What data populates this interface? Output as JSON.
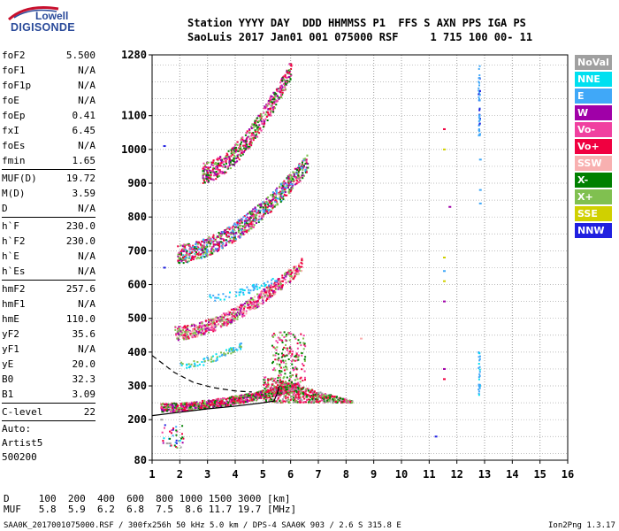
{
  "logo": {
    "line1": "Lowell",
    "line2": "DIGISONDE"
  },
  "header": {
    "line1": "Station YYYY DAY  DDD HHMMSS P1  FFS S AXN PPS IGA PS",
    "line2": "SaoLuis 2017 Jan01 001 075000 RSF     1 715 100 00- 11"
  },
  "params": [
    {
      "label": "foF2",
      "value": "5.500"
    },
    {
      "label": "foF1",
      "value": "N/A"
    },
    {
      "label": "foF1p",
      "value": "N/A"
    },
    {
      "label": "foE",
      "value": "N/A"
    },
    {
      "label": "foEp",
      "value": "0.41"
    },
    {
      "label": "fxI",
      "value": "6.45"
    },
    {
      "label": "foEs",
      "value": "N/A"
    },
    {
      "label": "fmin",
      "value": "1.65"
    },
    {
      "sep": true
    },
    {
      "label": "MUF(D)",
      "value": "19.72"
    },
    {
      "label": "M(D)",
      "value": "3.59"
    },
    {
      "label": "D",
      "value": "N/A"
    },
    {
      "sep": true
    },
    {
      "label": "h`F",
      "value": "230.0"
    },
    {
      "label": "h`F2",
      "value": "230.0"
    },
    {
      "label": "h`E",
      "value": "N/A"
    },
    {
      "label": "h`Es",
      "value": "N/A"
    },
    {
      "sep": true
    },
    {
      "label": "hmF2",
      "value": "257.6"
    },
    {
      "label": "hmF1",
      "value": "N/A"
    },
    {
      "label": "hmE",
      "value": "110.0"
    },
    {
      "label": "yF2",
      "value": "35.6"
    },
    {
      "label": "yF1",
      "value": "N/A"
    },
    {
      "label": "yE",
      "value": "20.0"
    },
    {
      "label": "B0",
      "value": "32.3"
    },
    {
      "label": "B1",
      "value": "3.09"
    },
    {
      "sep": true
    },
    {
      "label": "C-level",
      "value": "22"
    },
    {
      "sep": true
    },
    {
      "note": "Auto:"
    },
    {
      "note": "Artist5"
    },
    {
      "note": "500200"
    }
  ],
  "legend": [
    {
      "label": "NoVal",
      "color": "#a0a0a0"
    },
    {
      "label": "NNE",
      "color": "#00e0f0"
    },
    {
      "label": "E",
      "color": "#40a8f8"
    },
    {
      "label": "W",
      "color": "#a000a8"
    },
    {
      "label": "Vo-",
      "color": "#f040a0"
    },
    {
      "label": "Vo+",
      "color": "#f00040"
    },
    {
      "label": "SSW",
      "color": "#f8b0b0"
    },
    {
      "label": "X-",
      "color": "#008000"
    },
    {
      "label": "X+",
      "color": "#80c050"
    },
    {
      "label": "SSE",
      "color": "#d0d000"
    },
    {
      "label": "NNW",
      "color": "#2020e0"
    }
  ],
  "footer": {
    "dist_line": "D     100  200  400  600  800 1000 1500 3000 [km]",
    "muf_line": "MUF   5.8  5.9  6.2  6.8  7.5  8.6 11.7 19.7 [MHz]",
    "file_line": "SAA0K_2017001075000.RSF / 300fx256h 50 kHz 5.0 km / DPS-4 SAA0K 903 / 2.6 S 315.8 E",
    "version": "Ion2Png 1.3.17"
  },
  "chart_data": {
    "type": "scatter",
    "title": "",
    "xlabel": "",
    "ylabel": "",
    "xlim": [
      1,
      16
    ],
    "ylim": [
      80,
      1280
    ],
    "x_ticks": [
      1,
      2,
      3,
      4,
      5,
      6,
      7,
      8,
      9,
      10,
      11,
      12,
      13,
      14,
      15,
      16
    ],
    "y_ticks": [
      80,
      200,
      300,
      400,
      500,
      600,
      700,
      800,
      900,
      1000,
      1100,
      1280
    ],
    "grid": true,
    "legend_position": "right",
    "traces": [
      {
        "name": "F-trace 1",
        "color": "#f00040",
        "x_start": 1.3,
        "x_end": 6.3,
        "h_start": 235,
        "h_end": 300
      },
      {
        "name": "F-trace 2",
        "color": "#f00040",
        "x_start": 1.8,
        "x_end": 6.4,
        "h_start": 455,
        "h_end": 660
      },
      {
        "name": "F-trace 3",
        "color": "#008000",
        "x_start": 1.9,
        "x_end": 6.6,
        "h_start": 690,
        "h_end": 960
      },
      {
        "name": "F-trace 4",
        "color": "#f040a0",
        "x_start": 2.8,
        "x_end": 6.0,
        "h_start": 930,
        "h_end": 1240
      }
    ],
    "profile_curve": [
      [
        1.0,
        212
      ],
      [
        2.0,
        222
      ],
      [
        3.0,
        232
      ],
      [
        4.0,
        240
      ],
      [
        5.0,
        250
      ],
      [
        5.4,
        255
      ],
      [
        5.5,
        275
      ],
      [
        5.6,
        300
      ]
    ],
    "dashed_curve": [
      [
        1.0,
        390
      ],
      [
        1.8,
        340
      ],
      [
        2.5,
        310
      ],
      [
        3.2,
        295
      ],
      [
        4.0,
        285
      ],
      [
        4.6,
        282
      ]
    ]
  }
}
